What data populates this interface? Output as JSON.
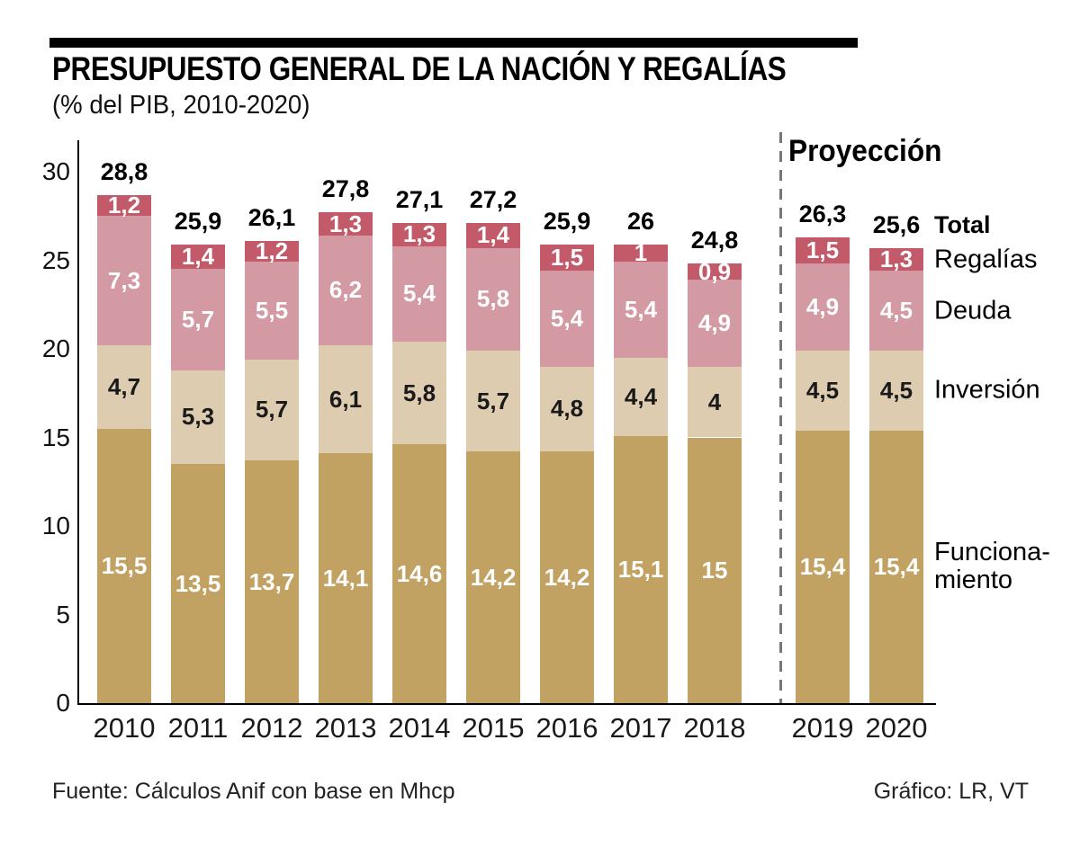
{
  "header": {
    "title": "PRESUPUESTO GENERAL DE LA NACIÓN Y REGALÍAS",
    "subtitle": "(% del PIB, 2010-2020)"
  },
  "chart_data": {
    "type": "bar",
    "stacked": true,
    "title": "PRESUPUESTO GENERAL DE LA NACIÓN Y REGALÍAS",
    "subtitle": "(% del PIB, 2010-2020)",
    "categories": [
      "2010",
      "2011",
      "2012",
      "2013",
      "2014",
      "2015",
      "2016",
      "2017",
      "2018",
      "2019",
      "2020"
    ],
    "projection": {
      "label": "Proyección",
      "starts_at": "2019"
    },
    "y_ticks": [
      "0",
      "5",
      "10",
      "15",
      "20",
      "25",
      "30"
    ],
    "ylim": [
      0,
      30
    ],
    "grid": false,
    "legend_position": "right",
    "series": [
      {
        "name": "Funcionamiento",
        "color": "#c1a263",
        "label_color": "#ffffff",
        "values": [
          15.5,
          13.5,
          13.7,
          14.1,
          14.6,
          14.2,
          14.2,
          15.1,
          15.0,
          15.4,
          15.4
        ],
        "labels": [
          "15,5",
          "13,5",
          "13,7",
          "14,1",
          "14,6",
          "14,2",
          "14,2",
          "15,1",
          "15",
          "15,4",
          "15,4"
        ]
      },
      {
        "name": "Inversión",
        "color": "#ddccb0",
        "label_color": "#1a1a1a",
        "values": [
          4.7,
          5.3,
          5.7,
          6.1,
          5.8,
          5.7,
          4.8,
          4.4,
          4.0,
          4.5,
          4.5
        ],
        "labels": [
          "4,7",
          "5,3",
          "5,7",
          "6,1",
          "5,8",
          "5,7",
          "4,8",
          "4,4",
          "4",
          "4,5",
          "4,5"
        ]
      },
      {
        "name": "Deuda",
        "color": "#d49aa4",
        "label_color": "#ffffff",
        "values": [
          7.3,
          5.7,
          5.5,
          6.2,
          5.4,
          5.8,
          5.4,
          5.4,
          4.9,
          4.9,
          4.5
        ],
        "labels": [
          "7,3",
          "5,7",
          "5,5",
          "6,2",
          "5,4",
          "5,8",
          "5,4",
          "5,4",
          "4,9",
          "4,9",
          "4,5"
        ]
      },
      {
        "name": "Regalías",
        "color": "#c25a6a",
        "label_color": "#ffffff",
        "values": [
          1.2,
          1.4,
          1.2,
          1.3,
          1.3,
          1.4,
          1.5,
          1.0,
          0.9,
          1.5,
          1.3
        ],
        "labels": [
          "1,2",
          "1,4",
          "1,2",
          "1,3",
          "1,3",
          "1,4",
          "1,5",
          "1",
          "0,9",
          "1,5",
          "1,3"
        ]
      }
    ],
    "totals": {
      "values": [
        28.8,
        25.9,
        26.1,
        27.8,
        27.1,
        27.2,
        25.9,
        26.0,
        24.8,
        26.3,
        25.6
      ],
      "labels": [
        "28,8",
        "25,9",
        "26,1",
        "27,8",
        "27,1",
        "27,2",
        "25,9",
        "26",
        "24,8",
        "26,3",
        "25,6"
      ]
    },
    "legend": {
      "total_label": "Total",
      "items": [
        {
          "series": "Regalías",
          "label": "Regalías"
        },
        {
          "series": "Deuda",
          "label": "Deuda"
        },
        {
          "series": "Inversión",
          "label": "Inversión"
        },
        {
          "series": "Funcionamiento",
          "label": "Funciona-miento",
          "lines": [
            "Funciona-",
            "miento"
          ]
        }
      ]
    }
  },
  "footer": {
    "source": "Fuente: Cálculos Anif con base en Mhcp",
    "credit": "Gráfico: LR, VT"
  }
}
